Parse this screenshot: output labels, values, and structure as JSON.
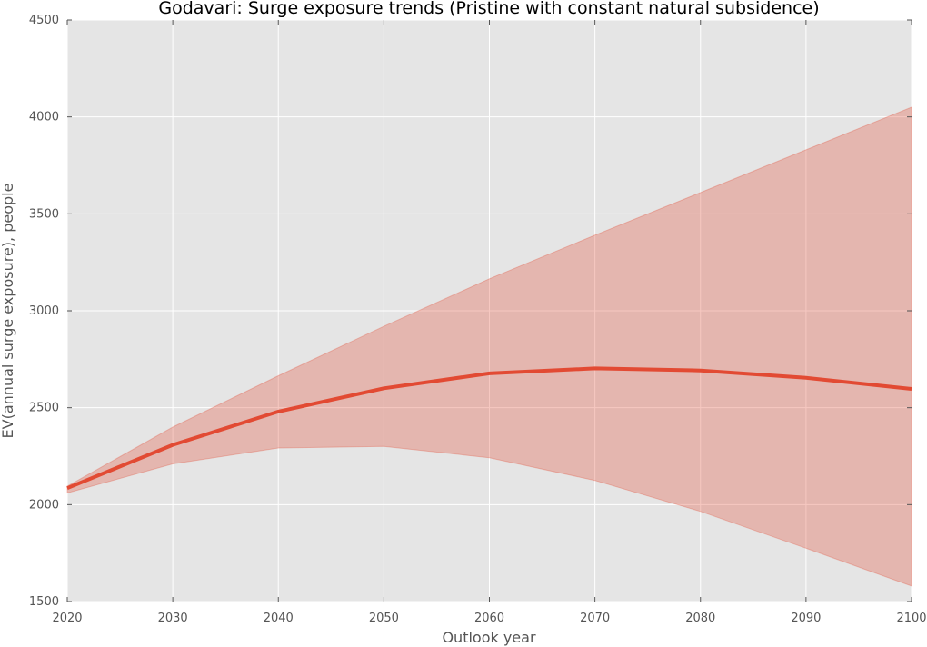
{
  "chart_data": {
    "type": "line",
    "title": "Godavari: Surge exposure trends (Pristine with constant natural subsidence)",
    "xlabel": "Outlook year",
    "ylabel": "EV(annual surge exposure), people",
    "xlim": [
      2020,
      2100
    ],
    "ylim": [
      1500,
      4500
    ],
    "xticks": [
      2020,
      2030,
      2040,
      2050,
      2060,
      2070,
      2080,
      2090,
      2100
    ],
    "yticks": [
      1500,
      2000,
      2500,
      3000,
      3500,
      4000,
      4500
    ],
    "grid": true,
    "x": [
      2020,
      2030,
      2040,
      2050,
      2060,
      2070,
      2080,
      2090,
      2100
    ],
    "series": [
      {
        "values": [
          2085,
          2308,
          2480,
          2600,
          2677,
          2703,
          2692,
          2654,
          2597
        ],
        "band_upper": [
          2095,
          2400,
          2665,
          2920,
          3165,
          3390,
          3610,
          3830,
          4050
        ],
        "band_lower": [
          2060,
          2210,
          2292,
          2300,
          2242,
          2125,
          1965,
          1775,
          1580
        ],
        "color": "#e24a33",
        "band_color": "#e24a33"
      }
    ],
    "plot_background": "#e5e5e5",
    "grid_color": "#ffffff"
  }
}
